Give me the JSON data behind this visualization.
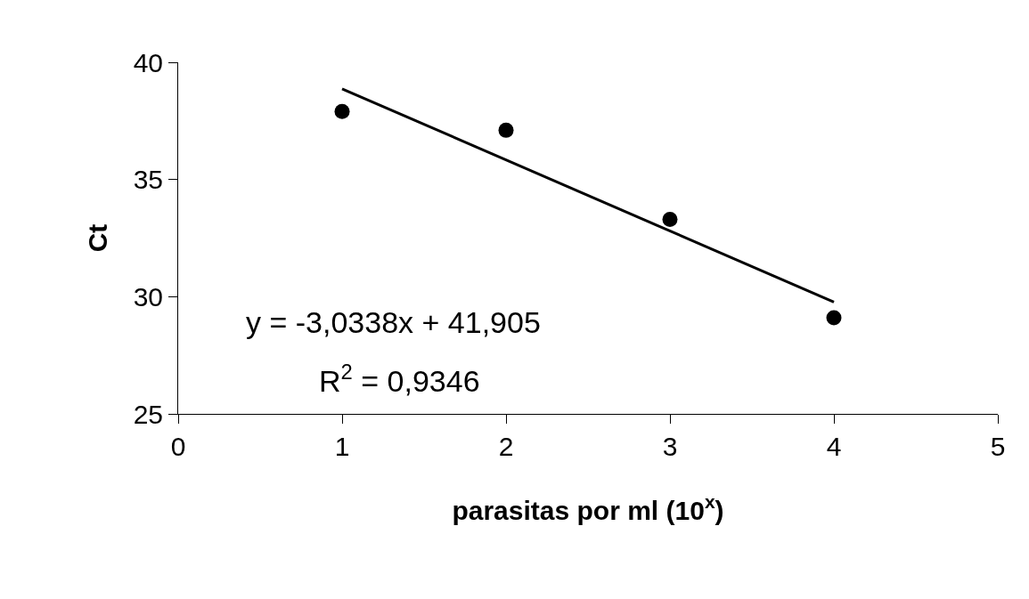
{
  "chart_data": {
    "type": "scatter",
    "xlabel": "parasitas por ml (10$^{x}$)",
    "ylabel": "Ct",
    "x": [
      1,
      2,
      3,
      4
    ],
    "series": [
      {
        "color": "#000000",
        "marker": "circle",
        "values": [
          37.9,
          37.1,
          33.3,
          29.1
        ]
      },
      {
        "type": "line",
        "color": "#000000",
        "marker": "none",
        "line_style": "solid",
        "x": [
          1,
          4
        ],
        "values": [
          38.87,
          29.77
        ]
      }
    ],
    "xlim": [
      0,
      5
    ],
    "xticks": [
      0,
      1,
      2,
      3,
      4,
      5
    ],
    "ylim": [
      25,
      40
    ],
    "yticks": [
      25,
      30,
      35,
      40
    ],
    "annotations": [
      "y = -3,0338x + 41,905",
      "R$^{2}$ = 0,9346"
    ]
  }
}
